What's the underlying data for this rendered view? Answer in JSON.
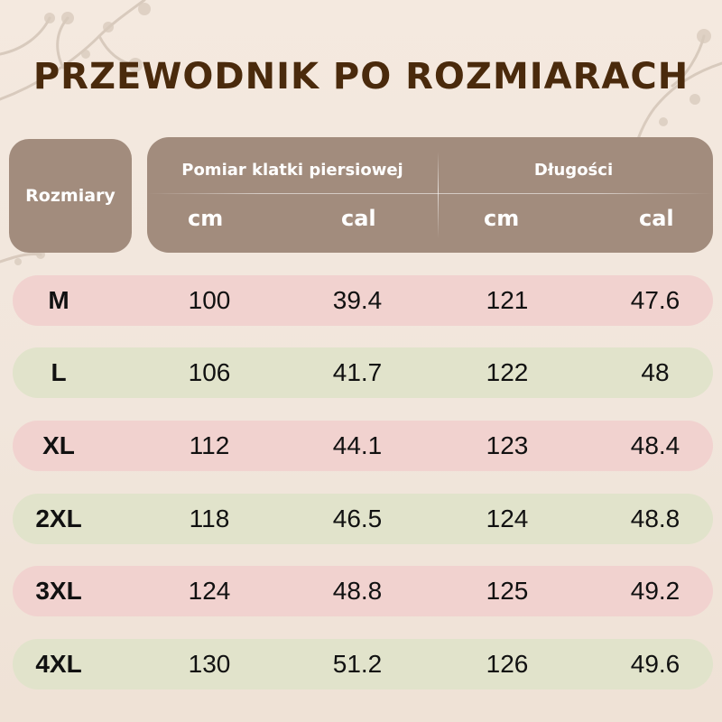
{
  "title": "PRZEWODNIK PO ROZMIARACH",
  "header": {
    "sizes": "Rozmiary",
    "chest": "Pomiar klatki piersiowej",
    "length": "Długości",
    "units": [
      "cm",
      "cal",
      "cm",
      "cal"
    ]
  },
  "colors": {
    "title": "#4a2a0c",
    "header_bg": "#a28c7d",
    "row_pink": "#f1d2cf",
    "row_green": "#e1e3cb"
  },
  "rows": [
    {
      "size": "M",
      "chest_cm": "100",
      "chest_in": "39.4",
      "length_cm": "121",
      "length_in": "47.6"
    },
    {
      "size": "L",
      "chest_cm": "106",
      "chest_in": "41.7",
      "length_cm": "122",
      "length_in": "48"
    },
    {
      "size": "XL",
      "chest_cm": "112",
      "chest_in": "44.1",
      "length_cm": "123",
      "length_in": "48.4"
    },
    {
      "size": "2XL",
      "chest_cm": "118",
      "chest_in": "46.5",
      "length_cm": "124",
      "length_in": "48.8"
    },
    {
      "size": "3XL",
      "chest_cm": "124",
      "chest_in": "48.8",
      "length_cm": "125",
      "length_in": "49.2"
    },
    {
      "size": "4XL",
      "chest_cm": "130",
      "chest_in": "51.2",
      "length_cm": "126",
      "length_in": "49.6"
    }
  ]
}
